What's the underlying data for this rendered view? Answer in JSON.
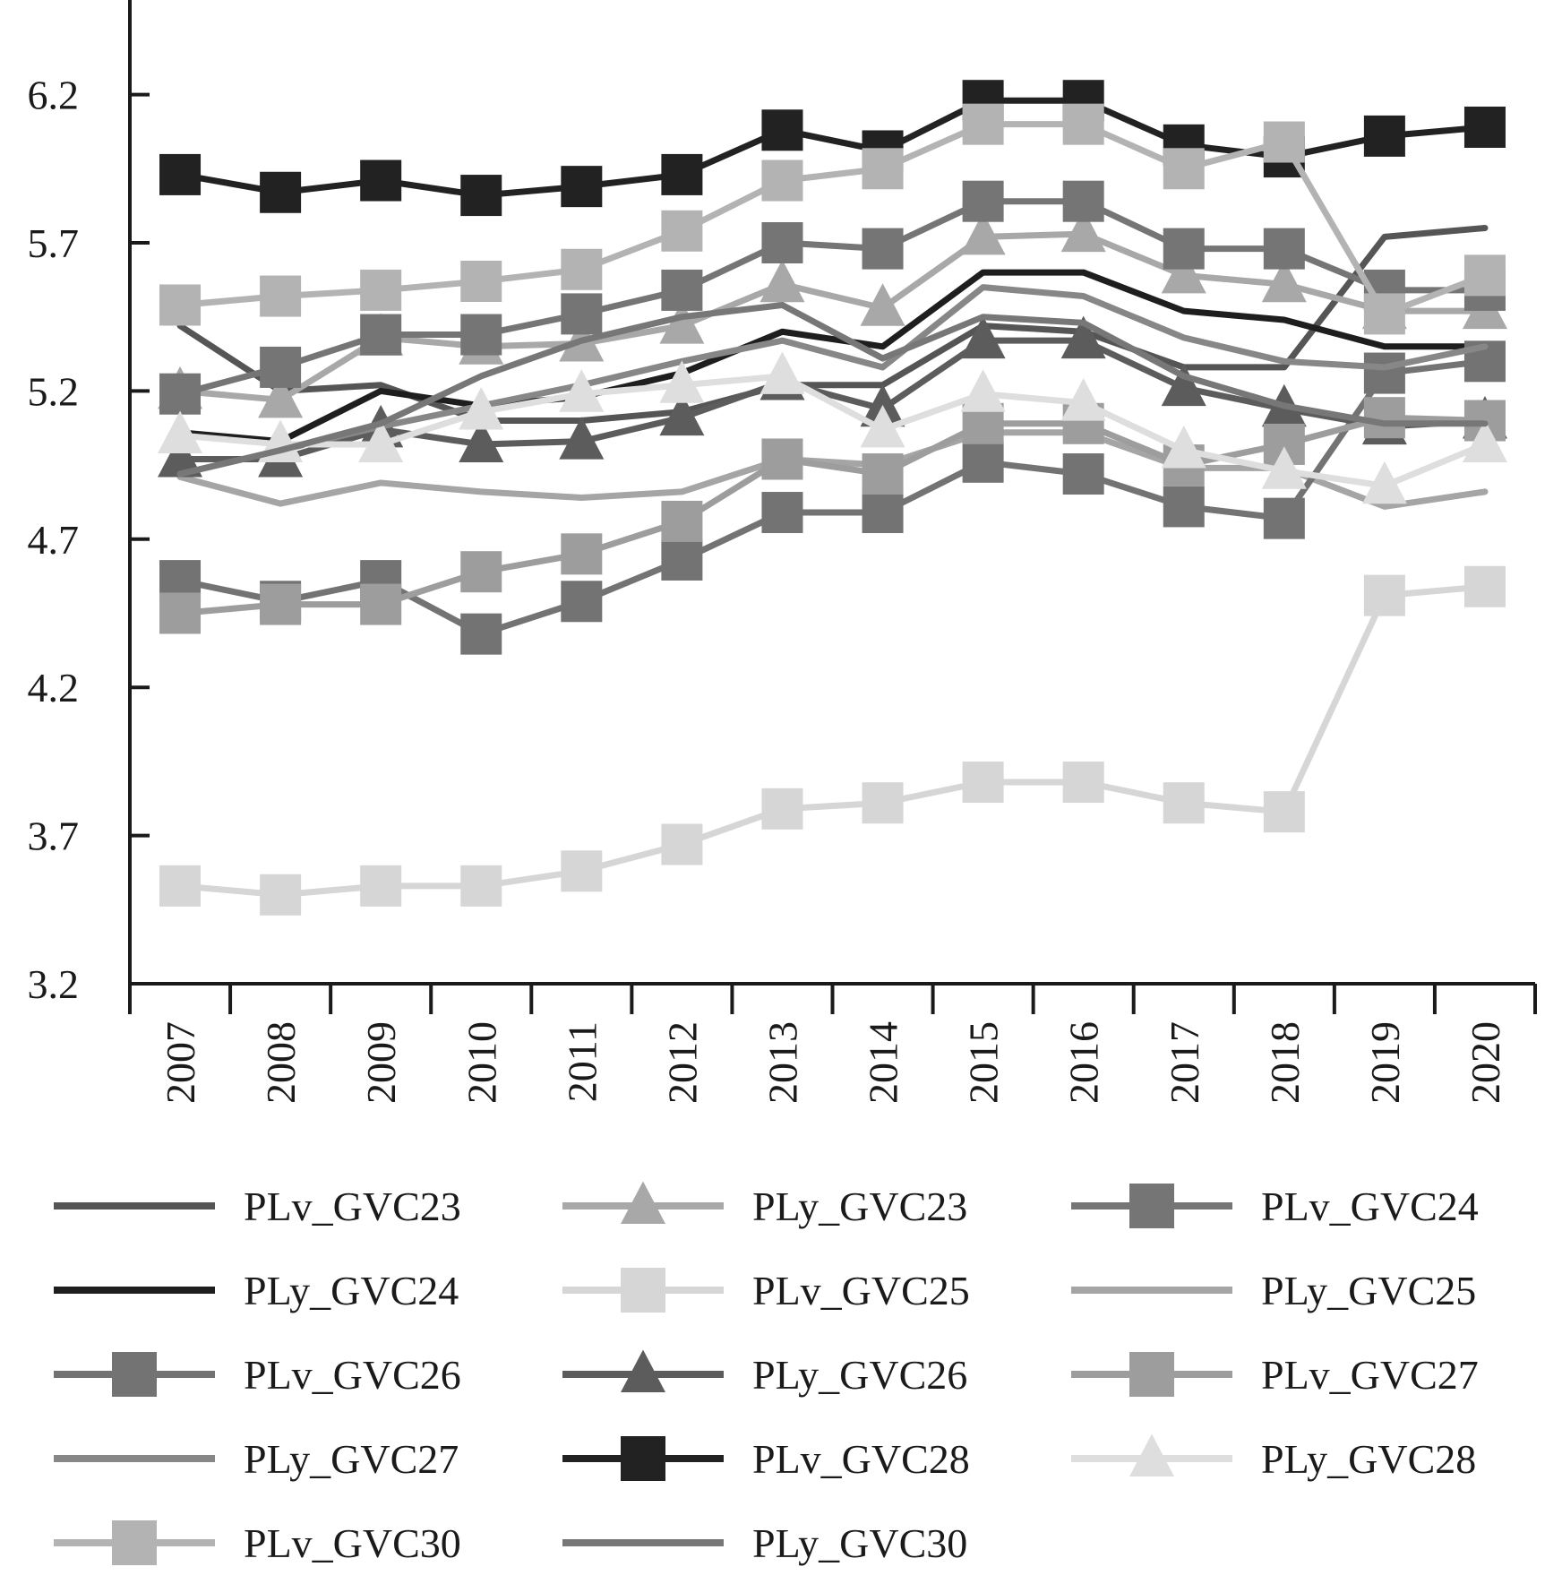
{
  "chart_data": {
    "type": "line",
    "title": "",
    "xlabel": "",
    "ylabel": "",
    "x": [
      "2007",
      "2008",
      "2009",
      "2010",
      "2011",
      "2012",
      "2013",
      "2014",
      "2015",
      "2016",
      "2017",
      "2018",
      "2019",
      "2020"
    ],
    "yticks": [
      "3.2",
      "3.7",
      "4.2",
      "4.7",
      "5.2",
      "5.7",
      "6.2"
    ],
    "ylim": [
      3.2,
      6.5
    ],
    "grid": false,
    "legend_position": "bottom",
    "series": [
      {
        "name": "PLv_GVC23",
        "marker": "none",
        "color": "#555555",
        "values": [
          5.42,
          5.2,
          5.22,
          5.1,
          5.1,
          5.13,
          5.22,
          5.22,
          5.42,
          5.4,
          5.28,
          5.28,
          5.72,
          5.75
        ]
      },
      {
        "name": "PLy_GVC23",
        "marker": "triangle",
        "color": "#a8a8a8",
        "values": [
          5.2,
          5.17,
          5.38,
          5.35,
          5.36,
          5.42,
          5.56,
          5.48,
          5.72,
          5.73,
          5.59,
          5.56,
          5.47,
          5.47
        ]
      },
      {
        "name": "PLv_GVC24",
        "marker": "square",
        "color": "#757575",
        "values": [
          5.19,
          5.28,
          5.39,
          5.39,
          5.46,
          5.54,
          5.7,
          5.68,
          5.84,
          5.84,
          5.68,
          5.68,
          5.54,
          5.54
        ]
      },
      {
        "name": "PLy_GVC24",
        "marker": "none",
        "color": "#1e1e1e",
        "values": [
          5.06,
          5.03,
          5.2,
          5.15,
          5.18,
          5.26,
          5.4,
          5.35,
          5.6,
          5.6,
          5.47,
          5.44,
          5.35,
          5.35
        ]
      },
      {
        "name": "PLv_GVC25",
        "marker": "square",
        "color": "#d6d6d6",
        "values": [
          3.53,
          3.5,
          3.53,
          3.53,
          3.58,
          3.67,
          3.79,
          3.81,
          3.88,
          3.88,
          3.81,
          3.78,
          4.51,
          4.54
        ]
      },
      {
        "name": "PLy_GVC25",
        "marker": "none",
        "color": "#a5a5a5",
        "values": [
          4.91,
          4.82,
          4.89,
          4.86,
          4.84,
          4.86,
          4.97,
          4.95,
          5.06,
          5.06,
          4.94,
          4.94,
          4.81,
          4.86
        ]
      },
      {
        "name": "PLv_GVC26",
        "marker": "square",
        "color": "#737373",
        "values": [
          4.56,
          4.49,
          4.56,
          4.38,
          4.49,
          4.63,
          4.79,
          4.79,
          4.96,
          4.92,
          4.81,
          4.77,
          5.26,
          5.3
        ]
      },
      {
        "name": "PLy_GVC26",
        "marker": "triangle",
        "color": "#5c5c5c",
        "values": [
          4.97,
          4.97,
          5.07,
          5.02,
          5.03,
          5.11,
          5.23,
          5.14,
          5.37,
          5.37,
          5.21,
          5.14,
          5.08,
          5.1
        ]
      },
      {
        "name": "PLv_GVC27",
        "marker": "square",
        "color": "#9d9d9d",
        "values": [
          4.45,
          4.48,
          4.48,
          4.59,
          4.65,
          4.76,
          4.97,
          4.92,
          5.09,
          5.09,
          4.95,
          5.02,
          5.11,
          5.1
        ]
      },
      {
        "name": "PLy_GVC27",
        "marker": "none",
        "color": "#878787",
        "values": [
          4.92,
          5.0,
          5.08,
          5.15,
          5.22,
          5.3,
          5.37,
          5.28,
          5.55,
          5.52,
          5.38,
          5.3,
          5.28,
          5.35
        ]
      },
      {
        "name": "PLv_GVC28",
        "marker": "square",
        "color": "#222222",
        "values": [
          5.93,
          5.87,
          5.91,
          5.86,
          5.89,
          5.93,
          6.08,
          6.01,
          6.18,
          6.18,
          6.03,
          5.99,
          6.06,
          6.09
        ]
      },
      {
        "name": "PLy_GVC28",
        "marker": "triangle",
        "color": "#dedede",
        "values": [
          5.05,
          5.02,
          5.02,
          5.13,
          5.19,
          5.22,
          5.25,
          5.07,
          5.19,
          5.16,
          5.0,
          4.93,
          4.88,
          5.02
        ]
      },
      {
        "name": "PLv_GVC30",
        "marker": "square",
        "color": "#b3b3b3",
        "values": [
          5.49,
          5.52,
          5.54,
          5.57,
          5.61,
          5.74,
          5.91,
          5.95,
          6.1,
          6.1,
          5.95,
          6.04,
          5.46,
          5.59
        ]
      },
      {
        "name": "PLy_GVC30",
        "marker": "none",
        "color": "#777777",
        "values": [
          4.92,
          5.0,
          5.09,
          5.25,
          5.37,
          5.45,
          5.49,
          5.31,
          5.45,
          5.43,
          5.25,
          5.15,
          5.09,
          5.09
        ]
      }
    ]
  }
}
